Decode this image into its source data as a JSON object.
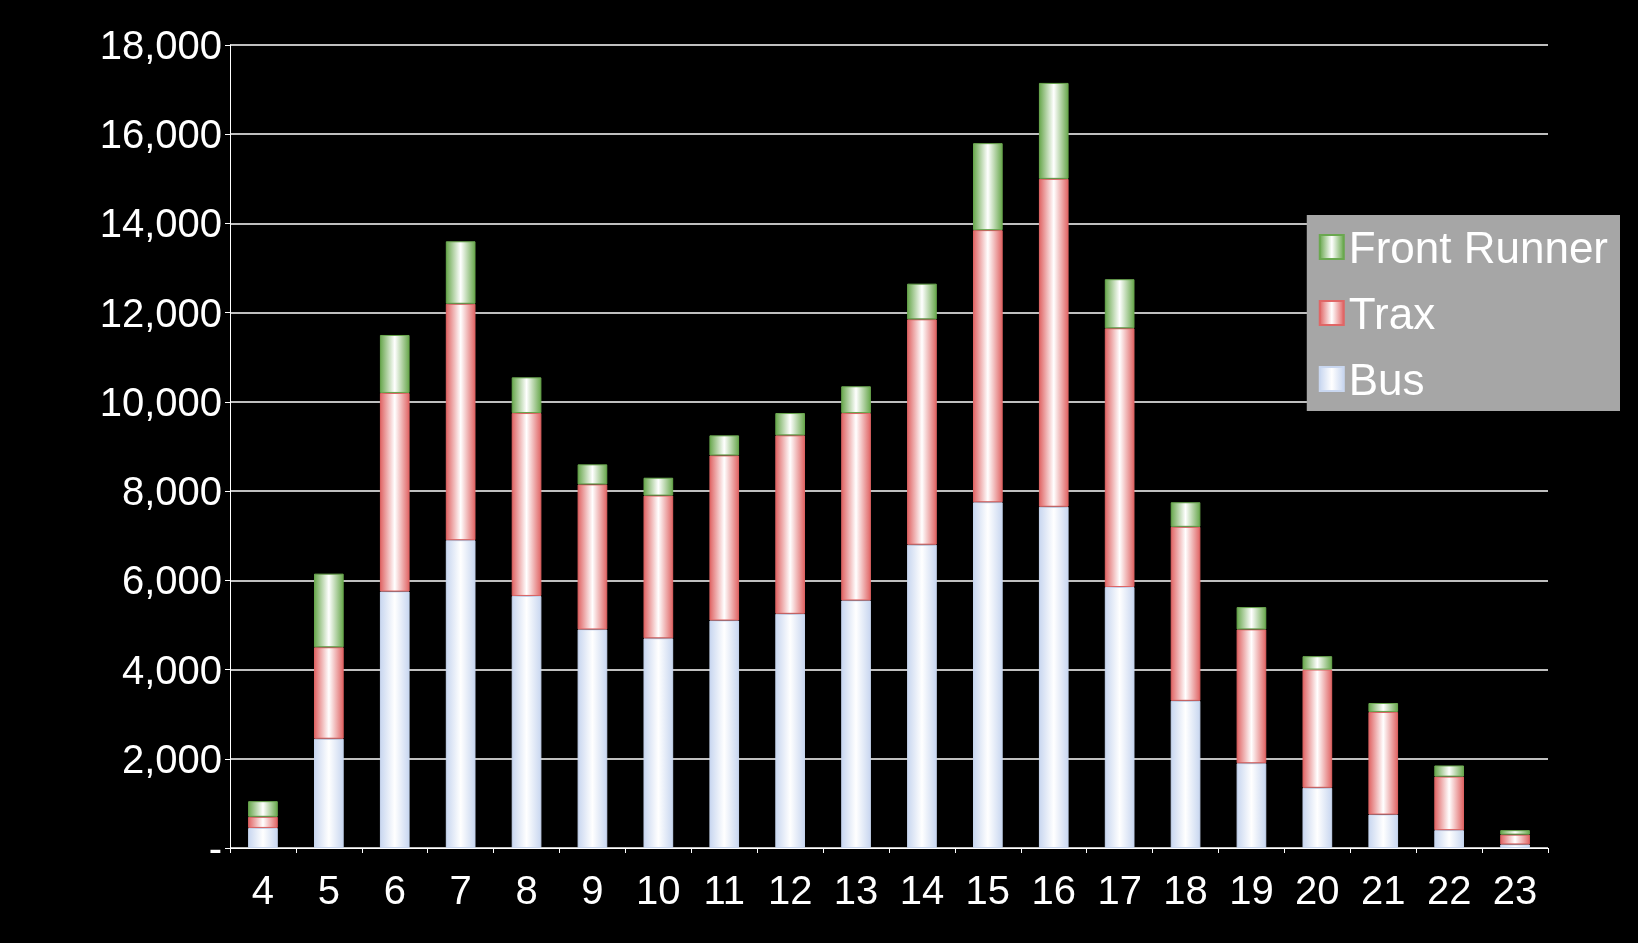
{
  "chart_data": {
    "type": "bar",
    "stacked": true,
    "categories": [
      "4",
      "5",
      "6",
      "7",
      "8",
      "9",
      "10",
      "11",
      "12",
      "13",
      "14",
      "15",
      "16",
      "17",
      "18",
      "19",
      "20",
      "21",
      "22",
      "23"
    ],
    "series": [
      {
        "name": "Bus",
        "color": "#c9d7f0",
        "values": [
          450,
          2450,
          5750,
          6900,
          5650,
          4900,
          4700,
          5100,
          5250,
          5550,
          6800,
          7750,
          7650,
          5850,
          3300,
          1900,
          1350,
          750,
          400,
          80
        ]
      },
      {
        "name": "Trax",
        "color": "#e06666",
        "values": [
          250,
          2050,
          4450,
          5300,
          4100,
          3250,
          3200,
          3700,
          4000,
          4200,
          5050,
          6100,
          7350,
          5800,
          3900,
          3000,
          2650,
          2300,
          1200,
          220
        ]
      },
      {
        "name": "Front Runner",
        "color": "#6aa84f",
        "values": [
          350,
          1650,
          1300,
          1400,
          800,
          450,
          400,
          450,
          500,
          600,
          800,
          1950,
          2150,
          1100,
          550,
          500,
          300,
          200,
          250,
          100
        ]
      }
    ],
    "ylim": [
      0,
      18000
    ],
    "yticks": [
      {
        "value": 0,
        "label": "-"
      },
      {
        "value": 2000,
        "label": "2,000"
      },
      {
        "value": 4000,
        "label": "4,000"
      },
      {
        "value": 6000,
        "label": "6,000"
      },
      {
        "value": 8000,
        "label": "8,000"
      },
      {
        "value": 10000,
        "label": "10,000"
      },
      {
        "value": 12000,
        "label": "12,000"
      },
      {
        "value": 14000,
        "label": "14,000"
      },
      {
        "value": 16000,
        "label": "16,000"
      },
      {
        "value": 18000,
        "label": "18,000"
      }
    ],
    "grid": "y",
    "legend": "top right"
  }
}
